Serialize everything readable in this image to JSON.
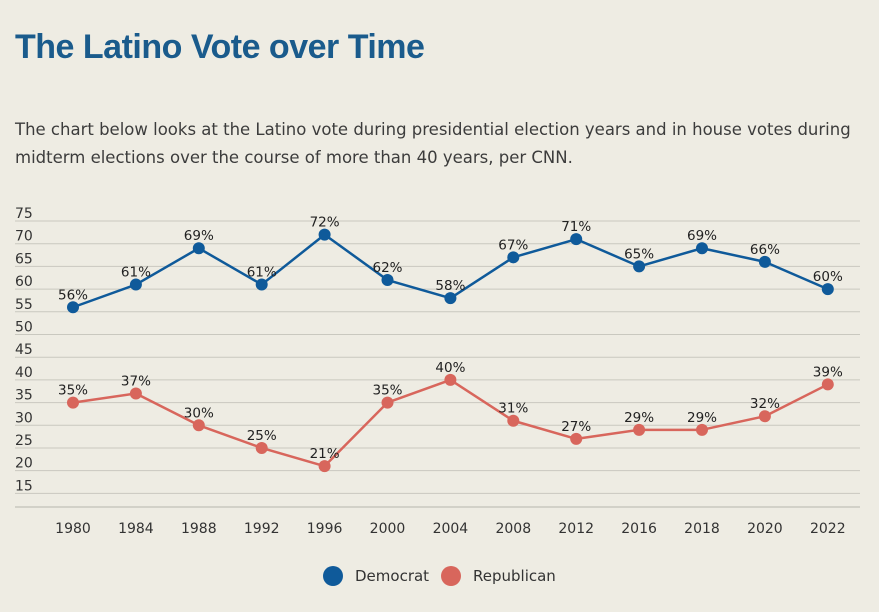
{
  "header": {
    "title": "The Latino Vote over Time",
    "subtitle": "The chart below looks at the Latino vote during presidential election years and in house votes during midterm elections over the course of more than 40 years, per CNN."
  },
  "legend": {
    "democrat_label": "Democrat",
    "republican_label": "Republican"
  },
  "chart_data": {
    "type": "line",
    "categories": [
      "1980",
      "1984",
      "1988",
      "1992",
      "1996",
      "2000",
      "2004",
      "2008",
      "2012",
      "2016",
      "2018",
      "2020",
      "2022"
    ],
    "y_ticks": [
      15,
      20,
      25,
      30,
      35,
      40,
      45,
      50,
      55,
      60,
      65,
      70,
      75
    ],
    "ylim": [
      12,
      75
    ],
    "grid": true,
    "legend_position": "bottom",
    "series": [
      {
        "name": "Democrat",
        "color": "#0f5a9a",
        "values": [
          56,
          61,
          69,
          61,
          72,
          62,
          58,
          67,
          71,
          65,
          69,
          66,
          60
        ],
        "labels": [
          "56%",
          "61%",
          "69%",
          "61%",
          "72%",
          "62%",
          "58%",
          "67%",
          "71%",
          "65%",
          "69%",
          "66%",
          "60%"
        ]
      },
      {
        "name": "Republican",
        "color": "#d8665c",
        "values": [
          35,
          37,
          30,
          25,
          21,
          35,
          40,
          31,
          27,
          29,
          29,
          32,
          39
        ],
        "labels": [
          "35%",
          "37%",
          "30%",
          "25%",
          "21%",
          "35%",
          "40%",
          "31%",
          "27%",
          "29%",
          "29%",
          "32%",
          "39%"
        ]
      }
    ]
  }
}
